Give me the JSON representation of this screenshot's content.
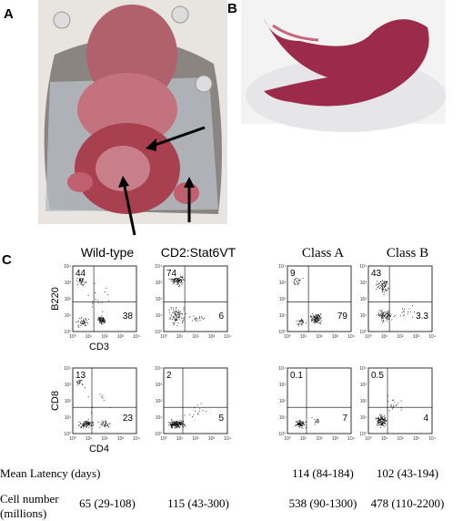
{
  "panels": {
    "a": "A",
    "b": "B",
    "c": "C"
  },
  "columns": [
    "Wild-type",
    "CD2:Stat6VT",
    "Class A",
    "Class B"
  ],
  "flow": {
    "ticks": [
      "10⁰",
      "10¹",
      "10²",
      "10³",
      "10⁴"
    ],
    "top": {
      "y_label": "B220",
      "x_label": "CD3",
      "quadrants": [
        [
          "44",
          "38"
        ],
        [
          "74",
          "6"
        ],
        [
          "9",
          "79"
        ],
        [
          "43",
          "3.3"
        ]
      ]
    },
    "bottom": {
      "y_label": "CD8",
      "x_label": "CD4",
      "quadrants": [
        [
          "13",
          "23"
        ],
        [
          "2",
          "5"
        ],
        [
          "0.1",
          "7"
        ],
        [
          "0.5",
          "4"
        ]
      ]
    }
  },
  "table": {
    "latency": {
      "label": "Mean Latency (days)",
      "values": [
        "114 (84-184)",
        "102 (43-194)"
      ]
    },
    "cells": {
      "label": [
        "Cell number",
        "(millions)"
      ],
      "values": [
        "65 (29-108)",
        "115 (43-300)",
        "538 (90-1300)",
        "478 (110-2200)"
      ]
    }
  }
}
